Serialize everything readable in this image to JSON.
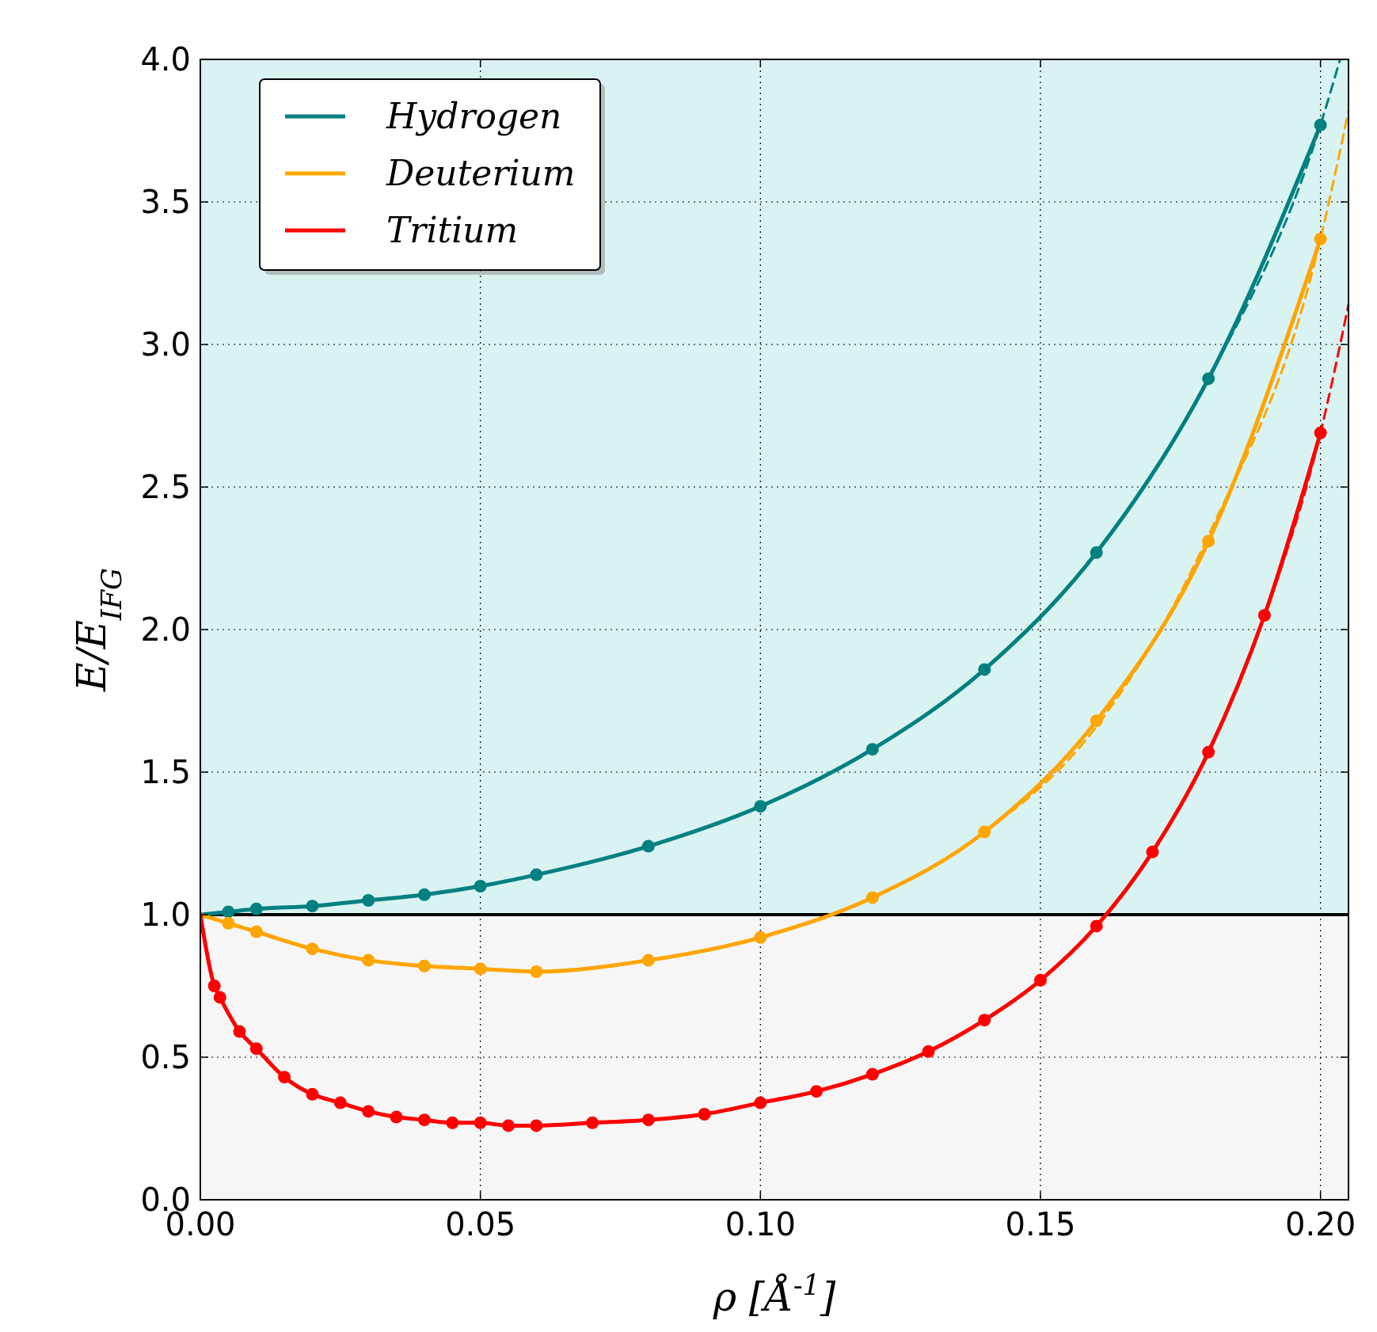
{
  "chart_data": {
    "type": "line",
    "xlabel": "ρ [Å$^{-1}$]",
    "ylabel": "E/E$_{IFG}$",
    "xlim": [
      0,
      0.205
    ],
    "ylim": [
      0,
      4
    ],
    "xticks": [
      {
        "value": 0,
        "label": "0.00"
      },
      0.05,
      {
        "value": 0.1,
        "label": "0.10"
      },
      0.15,
      {
        "value": 0.2,
        "label": "0.20"
      }
    ],
    "yticks": [
      {
        "value": 0,
        "label": "0.0"
      },
      0.5,
      {
        "value": 1,
        "label": "1.0"
      },
      1.5,
      {
        "value": 2,
        "label": "2.0"
      },
      2.5,
      {
        "value": 3,
        "label": "3.0"
      },
      3.5,
      {
        "value": 4,
        "label": "4.0"
      }
    ],
    "grid": true,
    "legend": "top left",
    "bands": [
      {
        "axis": "y",
        "from": 1,
        "to": 4,
        "color": "#d9f3f2"
      },
      {
        "axis": "y",
        "from": 0,
        "to": 1,
        "color": "#f6f6f6"
      }
    ],
    "ref_lines": [
      {
        "axis": "y",
        "value": 1,
        "color": "#000000"
      }
    ],
    "series": [
      {
        "name": "Hydrogen",
        "marker": "none",
        "color": "#008080",
        "x": [
          0,
          0.005,
          0.01,
          0.02,
          0.03,
          0.04,
          0.05,
          0.06,
          0.08,
          0.1,
          0.12,
          0.14,
          0.16,
          0.18,
          0.2
        ],
        "values": [
          1,
          1.01,
          1.02,
          1.03,
          1.05,
          1.07,
          1.1,
          1.14,
          1.24,
          1.38,
          1.58,
          1.86,
          2.27,
          2.88,
          3.77
        ]
      },
      {
        "name": "Deuterium",
        "marker": "none",
        "color": "#ffa500",
        "x": [
          0,
          0.005,
          0.01,
          0.02,
          0.03,
          0.04,
          0.05,
          0.06,
          0.08,
          0.1,
          0.12,
          0.14,
          0.16,
          0.18,
          0.2
        ],
        "values": [
          1,
          0.97,
          0.94,
          0.88,
          0.84,
          0.82,
          0.81,
          0.8,
          0.84,
          0.92,
          1.06,
          1.29,
          1.68,
          2.31,
          3.37
        ]
      },
      {
        "name": "Tritium",
        "marker": "none",
        "color": "#ff0000",
        "x": [
          0,
          0.0025,
          0.0035,
          0.007,
          0.01,
          0.015,
          0.02,
          0.025,
          0.03,
          0.035,
          0.04,
          0.045,
          0.05,
          0.055,
          0.06,
          0.07,
          0.08,
          0.09,
          0.1,
          0.11,
          0.12,
          0.13,
          0.14,
          0.15,
          0.16,
          0.17,
          0.18,
          0.19,
          0.2
        ],
        "values": [
          1,
          0.75,
          0.71,
          0.59,
          0.53,
          0.43,
          0.37,
          0.34,
          0.31,
          0.29,
          0.28,
          0.27,
          0.27,
          0.26,
          0.26,
          0.27,
          0.28,
          0.3,
          0.34,
          0.38,
          0.44,
          0.52,
          0.63,
          0.77,
          0.96,
          1.22,
          1.57,
          2.05,
          2.69
        ]
      },
      {
        "marker": "none",
        "line_style": "dashed",
        "color": "#008080",
        "x": [
          0.14,
          0.16,
          0.18,
          0.2,
          0.2035
        ],
        "values": [
          1.86,
          2.27,
          2.88,
          3.77,
          4
        ]
      },
      {
        "marker": "none",
        "line_style": "dashed",
        "color": "#ffa500",
        "x": [
          0.14,
          0.16,
          0.18,
          0.2,
          0.205
        ],
        "values": [
          1.29,
          1.66,
          2.33,
          3.37,
          3.82
        ]
      },
      {
        "marker": "none",
        "line_style": "dashed",
        "color": "#ff0000",
        "x": [
          0.19,
          0.2,
          0.205
        ],
        "values": [
          2.05,
          2.69,
          3.14
        ]
      },
      {
        "type": "scatter",
        "marker": "circle",
        "color": "#008080",
        "x": [
          0.005,
          0.01,
          0.02,
          0.03,
          0.04,
          0.05,
          0.06,
          0.08,
          0.1,
          0.12,
          0.14,
          0.16,
          0.18,
          0.2
        ],
        "values": [
          1.01,
          1.02,
          1.03,
          1.05,
          1.07,
          1.1,
          1.14,
          1.24,
          1.38,
          1.58,
          1.86,
          2.27,
          2.88,
          3.77
        ]
      },
      {
        "type": "scatter",
        "marker": "circle",
        "color": "#ffa500",
        "x": [
          0.005,
          0.01,
          0.02,
          0.03,
          0.04,
          0.05,
          0.06,
          0.08,
          0.1,
          0.12,
          0.14,
          0.16,
          0.18,
          0.2
        ],
        "values": [
          0.97,
          0.94,
          0.88,
          0.84,
          0.82,
          0.81,
          0.8,
          0.84,
          0.92,
          1.06,
          1.29,
          1.68,
          2.31,
          3.37
        ]
      },
      {
        "type": "scatter",
        "marker": "circle",
        "color": "#ff0000",
        "x": [
          0.0025,
          0.0035,
          0.007,
          0.01,
          0.015,
          0.02,
          0.025,
          0.03,
          0.035,
          0.04,
          0.045,
          0.05,
          0.055,
          0.06,
          0.07,
          0.08,
          0.09,
          0.1,
          0.11,
          0.12,
          0.13,
          0.14,
          0.15,
          0.16,
          0.17,
          0.18,
          0.19,
          0.2
        ],
        "values": [
          0.75,
          0.71,
          0.59,
          0.53,
          0.43,
          0.37,
          0.34,
          0.31,
          0.29,
          0.28,
          0.27,
          0.27,
          0.26,
          0.26,
          0.27,
          0.28,
          0.3,
          0.34,
          0.38,
          0.44,
          0.52,
          0.63,
          0.77,
          0.96,
          1.22,
          1.57,
          2.05,
          2.69
        ]
      }
    ]
  }
}
